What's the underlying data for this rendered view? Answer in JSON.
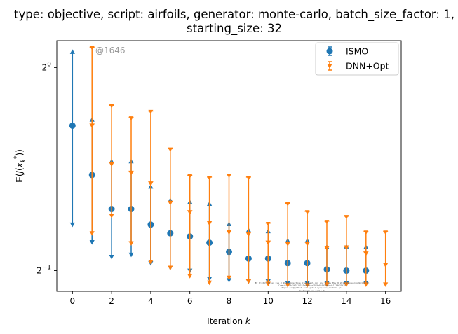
{
  "chart_data": {
    "type": "scatter",
    "title_line1": "type: objective, script: airfoils, generator: monte-carlo, batch_size_factor: 1,",
    "title_line2": "starting_size: 32",
    "xlabel": "Iteration k",
    "ylabel": "E(J(x_k*))",
    "yscale": "log2",
    "xlim": [
      -0.8,
      16.8
    ],
    "ylim": [
      0.466,
      1.096
    ],
    "x_ticks": [
      0,
      2,
      4,
      6,
      8,
      10,
      12,
      14,
      16
    ],
    "y_ticks": [
      {
        "value": 1.0,
        "base": "2",
        "exp": "0"
      },
      {
        "value": 0.5,
        "base": "2",
        "exp": "−1"
      }
    ],
    "grid": false,
    "legend_position": "top-right",
    "annotation": "@1646",
    "colors": {
      "ISMO": "#1f77b4",
      "DNN+Opt": "#ff7f0e"
    },
    "series": [
      {
        "name": "ISMO",
        "marker": "circle",
        "x": [
          0,
          1,
          2,
          3,
          4,
          5,
          6,
          7,
          8,
          9,
          10,
          11,
          12,
          13,
          14,
          15
        ],
        "y": [
          0.82,
          0.693,
          0.617,
          0.617,
          0.585,
          0.568,
          0.562,
          0.55,
          0.533,
          0.521,
          0.521,
          0.513,
          0.513,
          0.502,
          0.5,
          0.5
        ],
        "lower": [
          0.585,
          0.551,
          0.524,
          0.528,
          0.513,
          0.505,
          0.5,
          0.486,
          0.484,
          0.482,
          0.482,
          0.479,
          0.479,
          0.479,
          0.479,
          0.479
        ],
        "upper": [
          1.055,
          0.837,
          0.726,
          0.726,
          0.666,
          0.636,
          0.632,
          0.628,
          0.586,
          0.574,
          0.572,
          0.554,
          0.554,
          0.542,
          0.543,
          0.542
        ]
      },
      {
        "name": "DNN+Opt",
        "marker": "triangle",
        "x": [
          1,
          2,
          3,
          4,
          5,
          6,
          7,
          8,
          9,
          10,
          11,
          12,
          13,
          14,
          15,
          16
        ],
        "y": [
          0.82,
          0.719,
          0.698,
          0.673,
          0.63,
          0.61,
          0.588,
          0.57,
          0.566,
          0.55,
          0.548,
          0.548,
          0.54,
          0.541,
          0.53,
          0.51
        ],
        "lower": [
          0.568,
          0.603,
          0.549,
          0.515,
          0.505,
          0.491,
          0.48,
          0.488,
          0.482,
          0.478,
          0.476,
          0.476,
          0.477,
          0.477,
          0.477,
          0.477
        ],
        "upper": [
          1.072,
          0.879,
          0.843,
          0.862,
          0.758,
          0.692,
          0.688,
          0.693,
          0.688,
          0.588,
          0.629,
          0.612,
          0.592,
          0.602,
          0.571,
          0.571
        ]
      }
    ],
    "fine_print": [
      "By Kjetil Olsen Lye @ 2019 objective_lye@gmail.com and a few May 8 2019 skogenrep@multi.ch",
      "Commit: 39d3f7c1d1b2e44bfaa3029e8e3d50e6edc1734f33d39",
      "Repo: git@github.com:kjetil-lye/ismo_airfoil.git",
      "Hostname: eu-login-27"
    ]
  }
}
